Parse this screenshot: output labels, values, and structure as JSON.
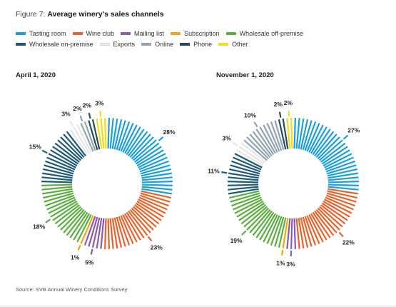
{
  "figure": {
    "number": "Figure 7:",
    "title": "Average winery's sales channels"
  },
  "legend": [
    {
      "name": "Tasting room",
      "color": "#1a9fd9"
    },
    {
      "name": "Wine club",
      "color": "#e8622b"
    },
    {
      "name": "Mailing list",
      "color": "#8a5bb0"
    },
    {
      "name": "Subscription",
      "color": "#f2a60f"
    },
    {
      "name": "Wholesale off-premise",
      "color": "#5aae3f"
    },
    {
      "name": "Wholesale on-premise",
      "color": "#1e5a78"
    },
    {
      "name": "Exports",
      "color": "#eaeaea"
    },
    {
      "name": "Online",
      "color": "#92a3b0"
    },
    {
      "name": "Phone",
      "color": "#274b5e"
    },
    {
      "name": "Other",
      "color": "#f5dc15"
    }
  ],
  "chart_data": [
    {
      "type": "pie",
      "style": "donut",
      "title": "April 1, 2020",
      "categories": [
        "Tasting room",
        "Wine club",
        "Mailing list",
        "Subscription",
        "Wholesale off-premise",
        "Wholesale on-premise",
        "Exports",
        "Online",
        "Phone",
        "Other"
      ],
      "values": [
        28,
        23,
        5,
        1,
        18,
        15,
        3,
        2,
        2,
        3
      ],
      "labels": [
        "28%",
        "23%",
        "5%",
        "1%",
        "18%",
        "15%",
        "3%",
        "2%",
        "2%",
        "3%"
      ]
    },
    {
      "type": "pie",
      "style": "donut",
      "title": "November 1, 2020",
      "categories": [
        "Tasting room",
        "Wine club",
        "Mailing list",
        "Subscription",
        "Wholesale off-premise",
        "Wholesale on-premise",
        "Exports",
        "Online",
        "Phone",
        "Other"
      ],
      "values": [
        27,
        22,
        3,
        1,
        19,
        11,
        3,
        10,
        2,
        2
      ],
      "labels": [
        "27%",
        "22%",
        "3%",
        "1%",
        "19%",
        "11%",
        "3%",
        "10%",
        "2%",
        "2%"
      ]
    }
  ],
  "source": "Source: SVB Annual Winery Conditions Survey"
}
